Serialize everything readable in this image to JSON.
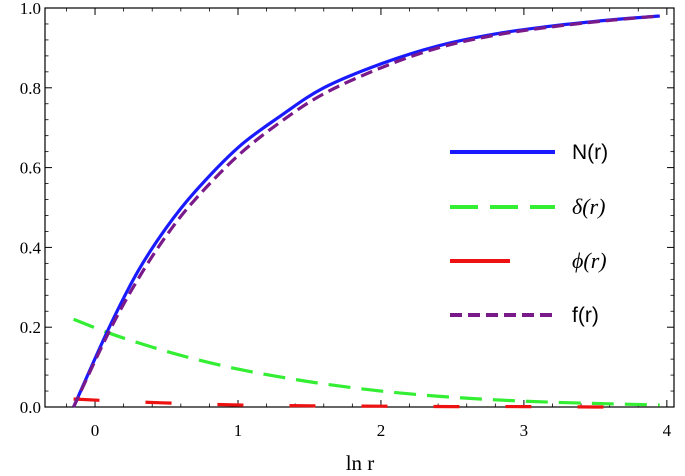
{
  "chart_data": {
    "type": "line",
    "title": "",
    "xlabel": "ln r",
    "ylabel": "",
    "xlim": [
      -0.35,
      4.05
    ],
    "ylim": [
      0,
      1.0
    ],
    "x_ticks": [
      0,
      1,
      2,
      3,
      4
    ],
    "x_tick_labels": [
      "0",
      "1",
      "2",
      "3",
      "4"
    ],
    "y_ticks": [
      0,
      0.2,
      0.4,
      0.6,
      0.8,
      1.0
    ],
    "y_tick_labels": [
      "0.0",
      "0.2",
      "0.4",
      "0.6",
      "0.8",
      "1.0"
    ],
    "grid": false,
    "legend_position": "right",
    "series": [
      {
        "name": "N(r)",
        "color": "#1a1aff",
        "style": "solid",
        "x": [
          -0.15,
          0.1,
          0.3,
          0.5,
          0.7,
          1.0,
          1.3,
          1.6,
          2.0,
          2.4,
          2.8,
          3.2,
          3.6,
          3.95
        ],
        "y": [
          0.0,
          0.2,
          0.34,
          0.45,
          0.54,
          0.65,
          0.73,
          0.8,
          0.86,
          0.905,
          0.935,
          0.955,
          0.97,
          0.98
        ]
      },
      {
        "name": "δ(r)",
        "color": "#33ee33",
        "style": "long-dash",
        "x": [
          -0.15,
          0.1,
          0.4,
          0.7,
          1.0,
          1.3,
          1.6,
          2.0,
          2.4,
          2.8,
          3.2,
          3.6,
          3.95
        ],
        "y": [
          0.22,
          0.185,
          0.15,
          0.12,
          0.095,
          0.075,
          0.058,
          0.04,
          0.027,
          0.018,
          0.012,
          0.008,
          0.005
        ]
      },
      {
        "name": "ϕ(r)",
        "color": "#ee1111",
        "style": "dash-gap",
        "x": [
          -0.15,
          0.2,
          0.6,
          1.0,
          1.5,
          2.0,
          2.5,
          3.0,
          3.5,
          3.85
        ],
        "y": [
          0.02,
          0.014,
          0.009,
          0.005,
          0.003,
          0.002,
          0.001,
          0.001,
          0.0,
          0.0
        ]
      },
      {
        "name": "f(r)",
        "color": "#7a1a8a",
        "style": "short-dash",
        "x": [
          -0.15,
          0.1,
          0.3,
          0.5,
          0.7,
          1.0,
          1.3,
          1.6,
          2.0,
          2.4,
          2.8,
          3.2,
          3.6,
          3.95
        ],
        "y": [
          0.0,
          0.19,
          0.32,
          0.43,
          0.52,
          0.63,
          0.715,
          0.785,
          0.85,
          0.9,
          0.932,
          0.953,
          0.969,
          0.98
        ]
      }
    ]
  }
}
